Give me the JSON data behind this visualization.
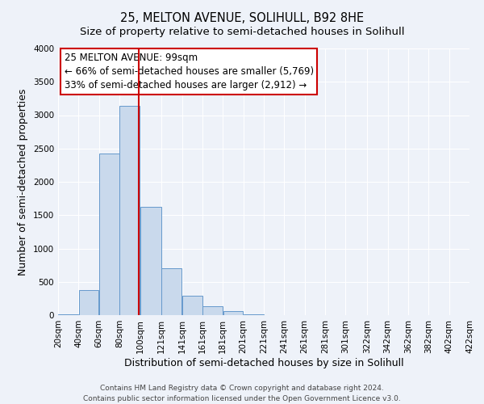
{
  "title": "25, MELTON AVENUE, SOLIHULL, B92 8HE",
  "subtitle": "Size of property relative to semi-detached houses in Solihull",
  "xlabel": "Distribution of semi-detached houses by size in Solihull",
  "ylabel": "Number of semi-detached properties",
  "bar_left_edges": [
    20,
    40,
    60,
    80,
    100,
    121,
    141,
    161,
    181,
    201,
    221,
    241,
    261,
    281,
    301,
    322,
    342,
    362,
    382,
    402
  ],
  "bar_widths": [
    20,
    20,
    20,
    20,
    21,
    20,
    20,
    20,
    20,
    20,
    20,
    20,
    20,
    20,
    21,
    20,
    20,
    20,
    20,
    20
  ],
  "bar_heights": [
    10,
    375,
    2420,
    3140,
    1630,
    700,
    295,
    130,
    55,
    15,
    5,
    5,
    2,
    2,
    0,
    0,
    0,
    0,
    0,
    0
  ],
  "bar_color": "#c9d9ec",
  "bar_edge_color": "#6699cc",
  "property_line_x": 99,
  "property_line_color": "#cc0000",
  "ylim": [
    0,
    4000
  ],
  "yticks": [
    0,
    500,
    1000,
    1500,
    2000,
    2500,
    3000,
    3500,
    4000
  ],
  "xtick_labels": [
    "20sqm",
    "40sqm",
    "60sqm",
    "80sqm",
    "100sqm",
    "121sqm",
    "141sqm",
    "161sqm",
    "181sqm",
    "201sqm",
    "221sqm",
    "241sqm",
    "261sqm",
    "281sqm",
    "301sqm",
    "322sqm",
    "342sqm",
    "362sqm",
    "382sqm",
    "402sqm",
    "422sqm"
  ],
  "xtick_positions": [
    20,
    40,
    60,
    80,
    100,
    121,
    141,
    161,
    181,
    201,
    221,
    241,
    261,
    281,
    301,
    322,
    342,
    362,
    382,
    402,
    422
  ],
  "annotation_title": "25 MELTON AVENUE: 99sqm",
  "annotation_line1": "← 66% of semi-detached houses are smaller (5,769)",
  "annotation_line2": "33% of semi-detached houses are larger (2,912) →",
  "annotation_box_color": "#ffffff",
  "annotation_box_edge_color": "#cc0000",
  "footer_line1": "Contains HM Land Registry data © Crown copyright and database right 2024.",
  "footer_line2": "Contains public sector information licensed under the Open Government Licence v3.0.",
  "background_color": "#eef2f9",
  "grid_color": "#ffffff",
  "title_fontsize": 10.5,
  "subtitle_fontsize": 9.5,
  "axis_label_fontsize": 9,
  "tick_fontsize": 7.5,
  "annotation_fontsize": 8.5,
  "footer_fontsize": 6.5
}
